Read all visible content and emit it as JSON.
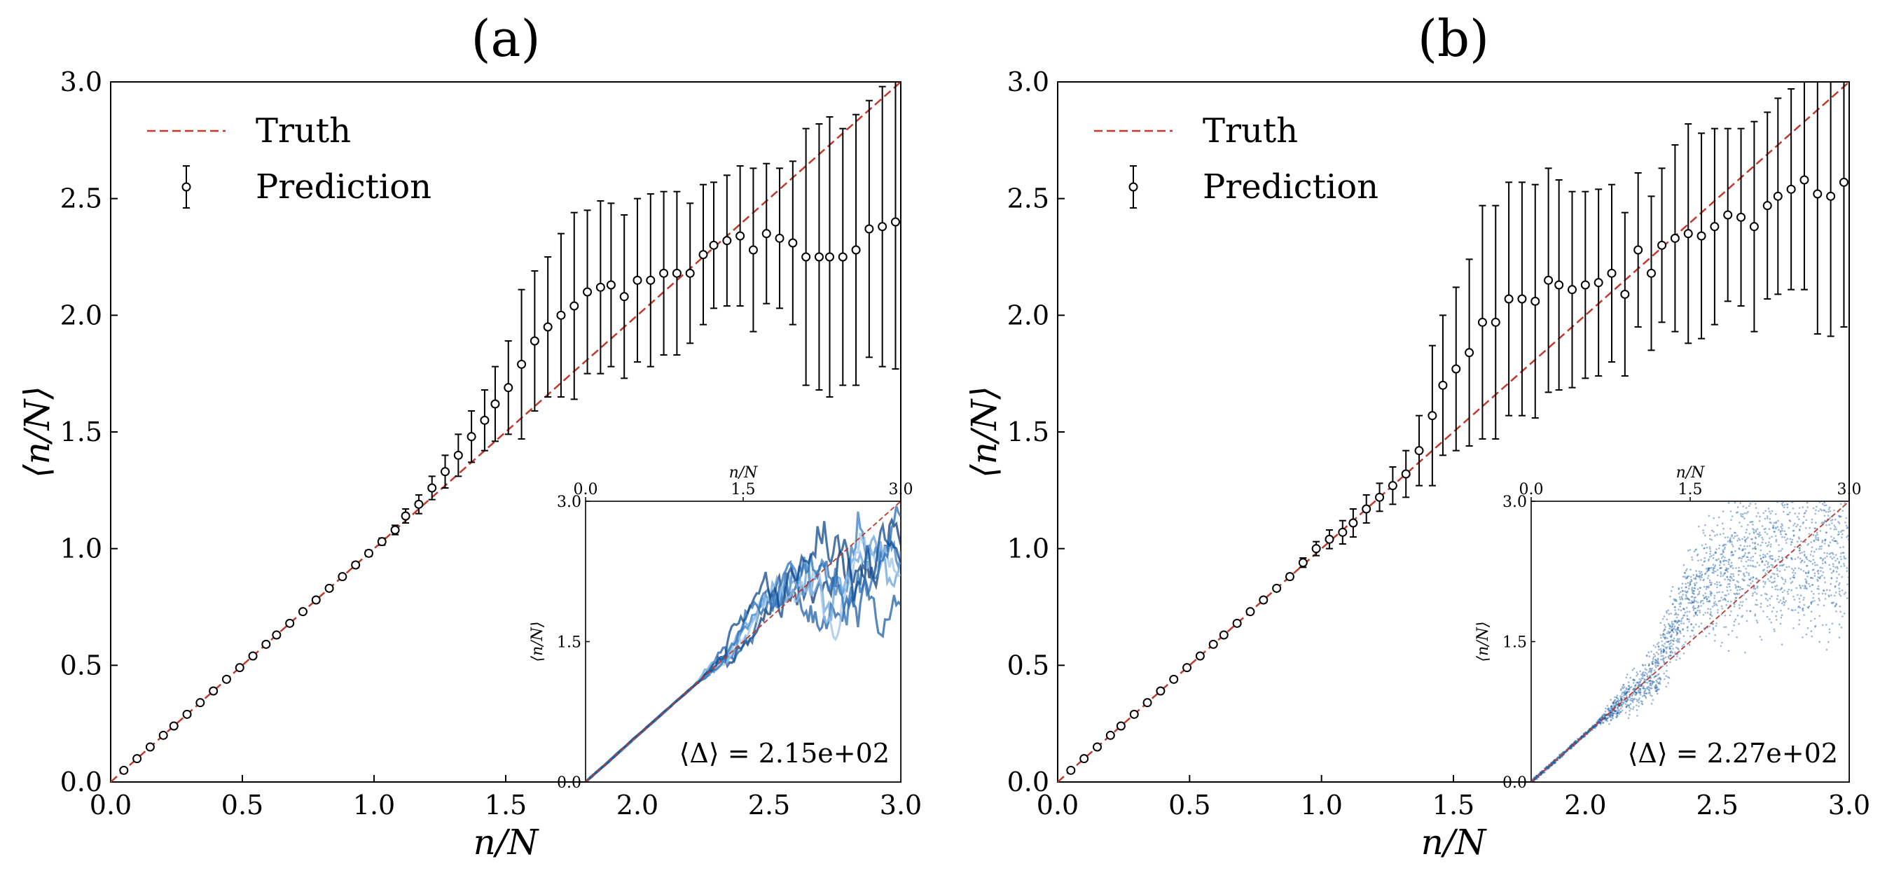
{
  "chart_data": [
    {
      "type": "scatter",
      "panel_label": "(a)",
      "xlabel": "n/N",
      "ylabel": "⟨n/N⟩",
      "xlim": [
        0.0,
        3.0
      ],
      "ylim": [
        0.0,
        3.0
      ],
      "xticks": [
        "0.0",
        "0.5",
        "1.0",
        "1.5",
        "2.0",
        "2.5",
        "3.0"
      ],
      "yticks": [
        "0.0",
        "0.5",
        "1.0",
        "1.5",
        "2.0",
        "2.5",
        "3.0"
      ],
      "legend": {
        "position": "top-left",
        "entries": [
          "Truth",
          "Prediction"
        ]
      },
      "truth_line": {
        "name": "Truth",
        "style": "dashed",
        "color": "#c0392b",
        "x": [
          0,
          3
        ],
        "y": [
          0,
          3
        ]
      },
      "prediction": {
        "name": "Prediction",
        "x": [
          0.05,
          0.1,
          0.15,
          0.2,
          0.24,
          0.29,
          0.34,
          0.39,
          0.44,
          0.49,
          0.54,
          0.59,
          0.63,
          0.68,
          0.73,
          0.78,
          0.83,
          0.88,
          0.93,
          0.98,
          1.03,
          1.08,
          1.12,
          1.17,
          1.22,
          1.27,
          1.32,
          1.37,
          1.42,
          1.46,
          1.51,
          1.56,
          1.61,
          1.66,
          1.71,
          1.76,
          1.81,
          1.86,
          1.9,
          1.95,
          2.0,
          2.05,
          2.1,
          2.15,
          2.2,
          2.25,
          2.29,
          2.34,
          2.39,
          2.44,
          2.49,
          2.54,
          2.59,
          2.64,
          2.69,
          2.73,
          2.78,
          2.83,
          2.88,
          2.93,
          2.98
        ],
        "y": [
          0.05,
          0.1,
          0.15,
          0.2,
          0.24,
          0.29,
          0.34,
          0.39,
          0.44,
          0.49,
          0.54,
          0.59,
          0.63,
          0.68,
          0.73,
          0.78,
          0.83,
          0.88,
          0.93,
          0.98,
          1.03,
          1.08,
          1.14,
          1.19,
          1.26,
          1.33,
          1.4,
          1.48,
          1.55,
          1.62,
          1.69,
          1.79,
          1.89,
          1.95,
          2.0,
          2.04,
          2.1,
          2.12,
          2.13,
          2.08,
          2.15,
          2.15,
          2.18,
          2.18,
          2.18,
          2.26,
          2.3,
          2.32,
          2.34,
          2.28,
          2.35,
          2.33,
          2.31,
          2.25,
          2.25,
          2.25,
          2.25,
          2.28,
          2.37,
          2.38,
          2.4
        ],
        "err": [
          0.005,
          0.005,
          0.005,
          0.005,
          0.005,
          0.005,
          0.005,
          0.006,
          0.006,
          0.006,
          0.007,
          0.007,
          0.008,
          0.008,
          0.009,
          0.01,
          0.01,
          0.011,
          0.012,
          0.013,
          0.015,
          0.02,
          0.03,
          0.04,
          0.05,
          0.07,
          0.09,
          0.11,
          0.13,
          0.16,
          0.2,
          0.32,
          0.3,
          0.3,
          0.35,
          0.4,
          0.35,
          0.37,
          0.35,
          0.35,
          0.35,
          0.37,
          0.35,
          0.35,
          0.3,
          0.3,
          0.27,
          0.28,
          0.3,
          0.35,
          0.3,
          0.3,
          0.35,
          0.55,
          0.57,
          0.6,
          0.55,
          0.58,
          0.55,
          0.6,
          0.63
        ]
      },
      "inset": {
        "type": "scatter",
        "description_free": true,
        "xlabel": "n/N",
        "ylabel": "⟨n/N⟩",
        "xlim": [
          0.0,
          3.0
        ],
        "ylim": [
          0.0,
          3.0
        ],
        "top_xticks": [
          "0.0",
          "1.5",
          "3.0"
        ],
        "bottom_xticks": [
          "2.0",
          "2.5",
          "3.0"
        ],
        "yticks": [
          "0.0",
          "1.5",
          "3.0"
        ],
        "annotation": "⟨Δ⟩ = 2.15e+02",
        "color": "#1f5fa6"
      }
    },
    {
      "type": "scatter",
      "panel_label": "(b)",
      "xlabel": "n/N",
      "ylabel": "⟨n/N⟩",
      "xlim": [
        0.0,
        3.0
      ],
      "ylim": [
        0.0,
        3.0
      ],
      "xticks": [
        "0.0",
        "0.5",
        "1.0",
        "1.5",
        "2.0",
        "2.5",
        "3.0"
      ],
      "yticks": [
        "0.0",
        "0.5",
        "1.0",
        "1.5",
        "2.0",
        "2.5",
        "3.0"
      ],
      "legend": {
        "position": "top-left",
        "entries": [
          "Truth",
          "Prediction"
        ]
      },
      "truth_line": {
        "name": "Truth",
        "style": "dashed",
        "color": "#c0392b",
        "x": [
          0,
          3
        ],
        "y": [
          0,
          3
        ]
      },
      "prediction": {
        "name": "Prediction",
        "x": [
          0.05,
          0.1,
          0.15,
          0.2,
          0.24,
          0.29,
          0.34,
          0.39,
          0.44,
          0.49,
          0.54,
          0.59,
          0.63,
          0.68,
          0.73,
          0.78,
          0.83,
          0.88,
          0.93,
          0.98,
          1.03,
          1.08,
          1.12,
          1.17,
          1.22,
          1.27,
          1.32,
          1.37,
          1.42,
          1.46,
          1.51,
          1.56,
          1.61,
          1.66,
          1.71,
          1.76,
          1.81,
          1.86,
          1.9,
          1.95,
          2.0,
          2.05,
          2.1,
          2.15,
          2.2,
          2.25,
          2.29,
          2.34,
          2.39,
          2.44,
          2.49,
          2.54,
          2.59,
          2.64,
          2.69,
          2.73,
          2.78,
          2.83,
          2.88,
          2.93,
          2.98
        ],
        "y": [
          0.05,
          0.1,
          0.15,
          0.2,
          0.24,
          0.29,
          0.34,
          0.39,
          0.44,
          0.49,
          0.54,
          0.59,
          0.63,
          0.68,
          0.73,
          0.78,
          0.83,
          0.88,
          0.94,
          1.0,
          1.04,
          1.07,
          1.11,
          1.17,
          1.22,
          1.27,
          1.32,
          1.42,
          1.57,
          1.7,
          1.77,
          1.84,
          1.97,
          1.97,
          2.07,
          2.07,
          2.06,
          2.15,
          2.13,
          2.11,
          2.13,
          2.14,
          2.18,
          2.09,
          2.28,
          2.18,
          2.3,
          2.33,
          2.35,
          2.34,
          2.38,
          2.43,
          2.42,
          2.38,
          2.47,
          2.51,
          2.54,
          2.58,
          2.52,
          2.51,
          2.57
        ],
        "err": [
          0.005,
          0.005,
          0.005,
          0.005,
          0.005,
          0.005,
          0.005,
          0.006,
          0.006,
          0.006,
          0.007,
          0.007,
          0.008,
          0.008,
          0.009,
          0.01,
          0.01,
          0.012,
          0.02,
          0.03,
          0.04,
          0.05,
          0.06,
          0.06,
          0.06,
          0.08,
          0.1,
          0.15,
          0.3,
          0.3,
          0.35,
          0.4,
          0.5,
          0.5,
          0.5,
          0.5,
          0.5,
          0.48,
          0.45,
          0.42,
          0.4,
          0.4,
          0.38,
          0.35,
          0.33,
          0.33,
          0.33,
          0.4,
          0.47,
          0.44,
          0.42,
          0.37,
          0.38,
          0.45,
          0.4,
          0.42,
          0.43,
          0.47,
          0.6,
          0.6,
          0.62
        ]
      },
      "inset": {
        "type": "scatter",
        "xlabel": "n/N",
        "ylabel": "⟨n/N⟩",
        "xlim": [
          0.0,
          3.0
        ],
        "ylim": [
          0.0,
          3.0
        ],
        "top_xticks": [
          "0.0",
          "1.5",
          "3.0"
        ],
        "bottom_xticks": [
          "2.0",
          "2.5",
          "3.0"
        ],
        "yticks": [
          "0.0",
          "1.5",
          "3.0"
        ],
        "annotation": "⟨Δ⟩ = 2.27e+02",
        "color": "#1f5fa6"
      }
    }
  ]
}
